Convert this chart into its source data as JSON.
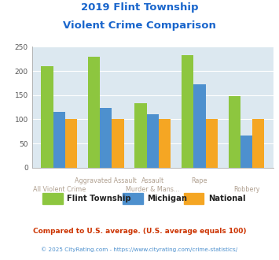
{
  "title_line1": "2019 Flint Township",
  "title_line2": "Violent Crime Comparison",
  "top_labels": [
    "",
    "Aggravated Assault",
    "Assault",
    "Rape",
    ""
  ],
  "bottom_labels": [
    "All Violent Crime",
    "",
    "Murder & Mans...",
    "",
    "Robbery"
  ],
  "flint": [
    210,
    229,
    134,
    232,
    148
  ],
  "michigan": [
    115,
    123,
    111,
    172,
    66
  ],
  "national": [
    100,
    100,
    100,
    100,
    100
  ],
  "colors": {
    "flint": "#8dc63f",
    "michigan": "#4d90ce",
    "national": "#f5a623"
  },
  "ylim": [
    0,
    250
  ],
  "yticks": [
    0,
    50,
    100,
    150,
    200,
    250
  ],
  "title_color": "#1a66cc",
  "axis_label_color": "#b0a090",
  "legend_label_color": "#222222",
  "footnote1": "Compared to U.S. average. (U.S. average equals 100)",
  "footnote2": "© 2025 CityRating.com - https://www.cityrating.com/crime-statistics/",
  "footnote1_color": "#cc3300",
  "footnote2_color": "#4d90ce",
  "background_color": "#dce8f0",
  "figure_background": "#ffffff",
  "grid_color": "#ffffff"
}
